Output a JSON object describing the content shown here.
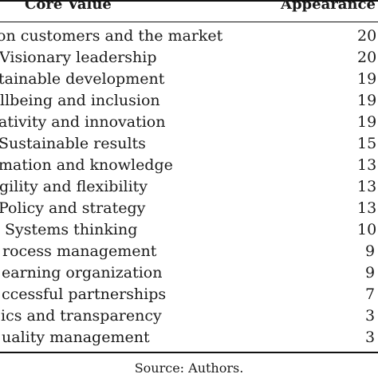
{
  "table": {
    "headers": {
      "core_value": "Core Value",
      "appearance": "Appearance"
    },
    "rows": [
      {
        "label": "on customers and the market",
        "count": "20"
      },
      {
        "label": "Visionary leadership",
        "count": "20"
      },
      {
        "label": "tainable development",
        "count": "19"
      },
      {
        "label": "llbeing and inclusion",
        "count": "19"
      },
      {
        "label": "ativity and innovation",
        "count": "19"
      },
      {
        "label": "Sustainable results",
        "count": "15"
      },
      {
        "label": "mation and knowledge",
        "count": "13"
      },
      {
        "label": "gility and flexibility",
        "count": "13"
      },
      {
        "label": "Policy and strategy",
        "count": "13"
      },
      {
        "label": "Systems thinking",
        "count": "10"
      },
      {
        "label": "rocess management",
        "count": "9"
      },
      {
        "label": "earning organization",
        "count": "9"
      },
      {
        "label": "ccessful partnerships",
        "count": "7"
      },
      {
        "label": "ics and transparency",
        "count": "3"
      },
      {
        "label": "uality management",
        "count": "3"
      }
    ]
  },
  "source": "Source: Authors."
}
